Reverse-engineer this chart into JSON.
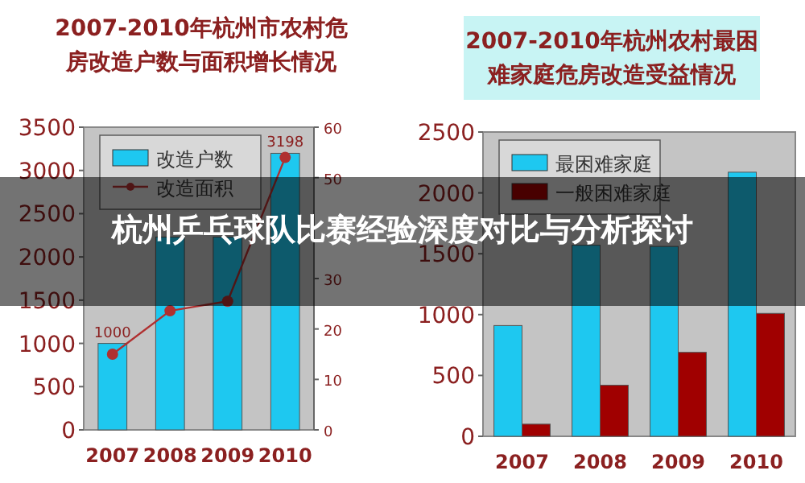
{
  "chart_data": [
    {
      "type": "bar",
      "title": "2007-2010年杭州市农村危房改造户数与面积增长情况",
      "categories": [
        "2007",
        "2008",
        "2009",
        "2010"
      ],
      "ylim": [
        0,
        3500
      ],
      "yticks": [
        0,
        500,
        1000,
        1500,
        2000,
        2500,
        3000,
        3500
      ],
      "y2lim": [
        0,
        60
      ],
      "y2ticks": [
        0,
        10,
        20,
        30,
        50,
        60
      ],
      "legend": "top left",
      "series": [
        {
          "name": "改造户数",
          "type": "bar",
          "color": "#1ec8f0",
          "values": [
            1000,
            2230,
            2230,
            3198
          ],
          "value_labels": [
            "1000",
            null,
            null,
            "3198"
          ]
        },
        {
          "name": "改造面积",
          "type": "line",
          "axis": "y2",
          "color": "#b03030",
          "marker": "circle",
          "values": [
            15,
            23.6,
            25.5,
            54
          ]
        }
      ]
    },
    {
      "type": "bar",
      "title": "2007-2010年杭州农村最困难家庭危房改造受益情况",
      "categories": [
        "2007",
        "2008",
        "2009",
        "2010"
      ],
      "ylim": [
        0,
        2500
      ],
      "yticks": [
        0,
        500,
        1000,
        1500,
        2000,
        2500
      ],
      "legend": "top left",
      "series": [
        {
          "name": "最困难家庭",
          "color": "#1ec8f0",
          "values": [
            910,
            1570,
            1560,
            2170
          ]
        },
        {
          "name": "一般困难家庭",
          "color": "#a00000",
          "values": [
            100,
            420,
            690,
            1010
          ]
        }
      ]
    },
    {
      "type": "other",
      "title": "杭州乒乓球队比赛经验深度对比与分析探讨"
    }
  ]
}
